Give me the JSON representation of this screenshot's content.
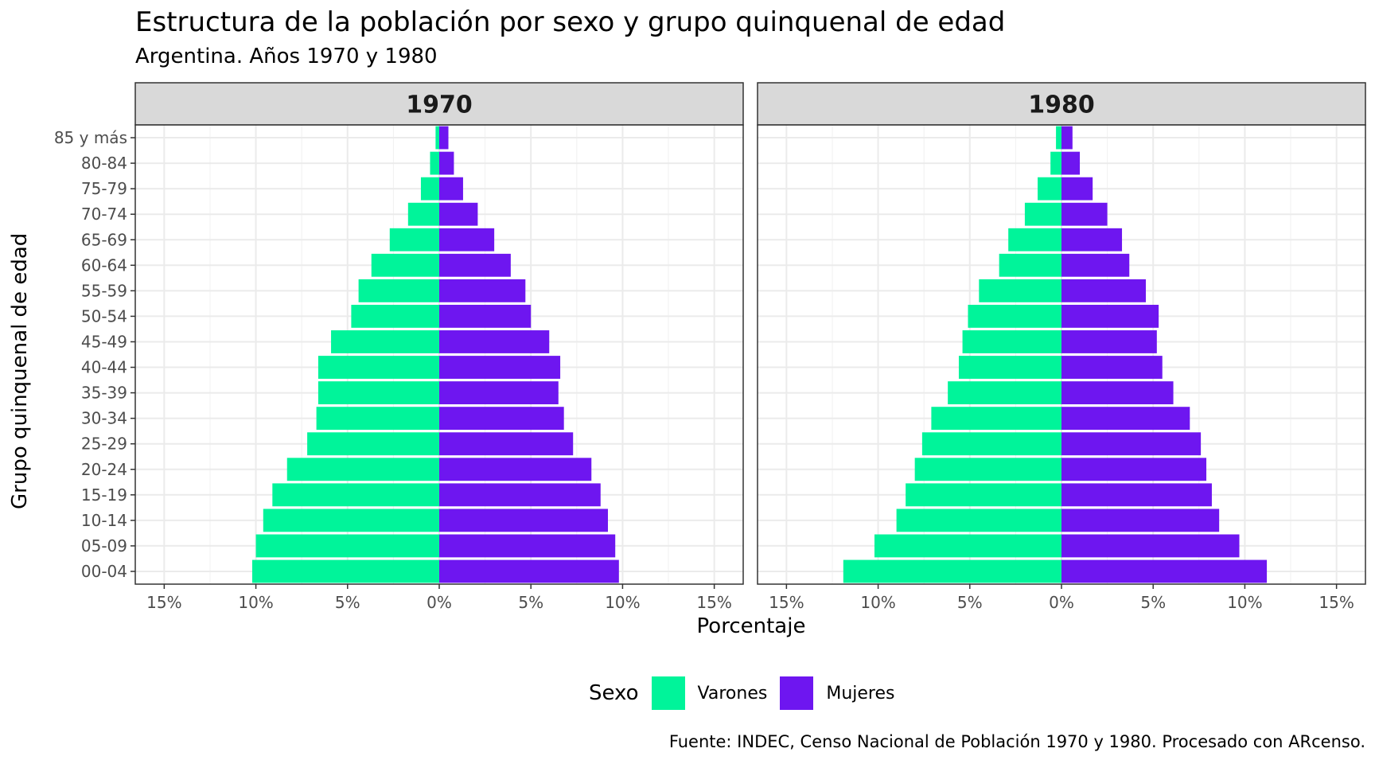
{
  "chart_data": {
    "type": "bar",
    "orientation": "horizontal-population-pyramid",
    "title": "Estructura de la población por sexo y grupo quinquenal de edad",
    "subtitle": "Argentina. Años 1970 y 1980",
    "xlabel": "Porcentaje",
    "ylabel": "Grupo quinquenal de edad",
    "caption": "Fuente: INDEC, Censo Nacional de Población 1970 y 1980. Procesado con ARcenso.",
    "legend_title": "Sexo",
    "legend_position": "bottom",
    "grid": true,
    "xlim": [
      -15,
      15
    ],
    "x_ticks": [
      -15,
      -10,
      -5,
      0,
      5,
      10,
      15
    ],
    "x_tick_labels": [
      "15%",
      "10%",
      "5%",
      "0%",
      "5%",
      "10%",
      "15%"
    ],
    "categories": [
      "00-04",
      "05-09",
      "10-14",
      "15-19",
      "20-24",
      "25-29",
      "30-34",
      "35-39",
      "40-44",
      "45-49",
      "50-54",
      "55-59",
      "60-64",
      "65-69",
      "70-74",
      "75-79",
      "80-84",
      "85 y más"
    ],
    "series_colors": {
      "Varones": "#00F49A",
      "Mujeres": "#6E16F0"
    },
    "panels": [
      {
        "label": "1970",
        "series": [
          {
            "name": "Varones",
            "values": [
              10.2,
              10.0,
              9.6,
              9.1,
              8.3,
              7.2,
              6.7,
              6.6,
              6.6,
              5.9,
              4.8,
              4.4,
              3.7,
              2.7,
              1.7,
              1.0,
              0.5,
              0.2
            ]
          },
          {
            "name": "Mujeres",
            "values": [
              9.8,
              9.6,
              9.2,
              8.8,
              8.3,
              7.3,
              6.8,
              6.5,
              6.6,
              6.0,
              5.0,
              4.7,
              3.9,
              3.0,
              2.1,
              1.3,
              0.8,
              0.5
            ]
          }
        ]
      },
      {
        "label": "1980",
        "series": [
          {
            "name": "Varones",
            "values": [
              11.9,
              10.2,
              9.0,
              8.5,
              8.0,
              7.6,
              7.1,
              6.2,
              5.6,
              5.4,
              5.1,
              4.5,
              3.4,
              2.9,
              2.0,
              1.3,
              0.6,
              0.3
            ]
          },
          {
            "name": "Mujeres",
            "values": [
              11.2,
              9.7,
              8.6,
              8.2,
              7.9,
              7.6,
              7.0,
              6.1,
              5.5,
              5.2,
              5.3,
              4.6,
              3.7,
              3.3,
              2.5,
              1.7,
              1.0,
              0.6
            ]
          }
        ]
      }
    ]
  }
}
